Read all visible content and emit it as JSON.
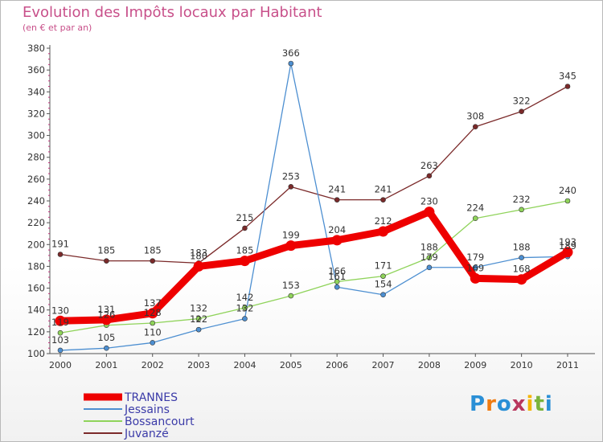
{
  "title": "Evolution des Impôts locaux par Habitant",
  "subtitle": "(en € et par an)",
  "logo": {
    "text": "Proxiti",
    "letter_colors": [
      "#2a8fd6",
      "#f07c12",
      "#2a8fd6",
      "#b9375e",
      "#f5b400",
      "#7bb33c",
      "#2a8fd6"
    ]
  },
  "chart_data": {
    "type": "line",
    "categories": [
      "2000",
      "2001",
      "2002",
      "2003",
      "2004",
      "2005",
      "2006",
      "2007",
      "2008",
      "2009",
      "2010",
      "2011"
    ],
    "ylim": [
      100,
      380
    ],
    "ytick_step": 20,
    "yticks": [
      "100",
      "120",
      "140",
      "160",
      "180",
      "200",
      "220",
      "240",
      "260",
      "280",
      "300",
      "320",
      "340",
      "360",
      "380"
    ],
    "grid": false,
    "legend_position": "bottom-left",
    "series": [
      {
        "name": "Juvanzé",
        "color": "#7b2a2a",
        "values": [
          191,
          185,
          185,
          183,
          215,
          253,
          241,
          241,
          263,
          308,
          322,
          345
        ],
        "labels": [
          "191",
          "185",
          "185",
          "183",
          "215",
          "253",
          "241",
          "241",
          "263",
          "308",
          "322",
          "345"
        ]
      },
      {
        "name": "Jessains",
        "color": "#4d8fd1",
        "values": [
          103,
          105,
          110,
          122,
          132,
          366,
          161,
          154,
          179,
          179,
          188,
          189
        ],
        "labels": [
          "103",
          "105",
          "110",
          "122",
          "132",
          "366",
          "161",
          "154",
          "179",
          "179",
          "188",
          "189"
        ]
      },
      {
        "name": "Bossancourt",
        "color": "#8fd35a",
        "values": [
          119,
          126,
          128,
          132,
          142,
          153,
          166,
          171,
          188,
          224,
          232,
          240
        ],
        "labels": [
          "119",
          "126",
          "128",
          "132",
          "142",
          "153",
          "166",
          "171",
          "188",
          "224",
          "232",
          "240"
        ]
      },
      {
        "name": "TRANNES",
        "color": "#ee0000",
        "values": [
          130,
          131,
          137,
          180,
          185,
          199,
          204,
          212,
          230,
          169,
          168,
          193
        ],
        "labels": [
          "130",
          "131",
          "137",
          "180",
          "185",
          "199",
          "204",
          "212",
          "230",
          "169",
          "168",
          "193"
        ]
      }
    ],
    "legend": [
      {
        "name": "TRANNES",
        "color": "#ee0000"
      },
      {
        "name": "Jessains",
        "color": "#4d8fd1"
      },
      {
        "name": "Bossancourt",
        "color": "#8fd35a"
      },
      {
        "name": "Juvanzé",
        "color": "#7b2a2a"
      }
    ]
  }
}
